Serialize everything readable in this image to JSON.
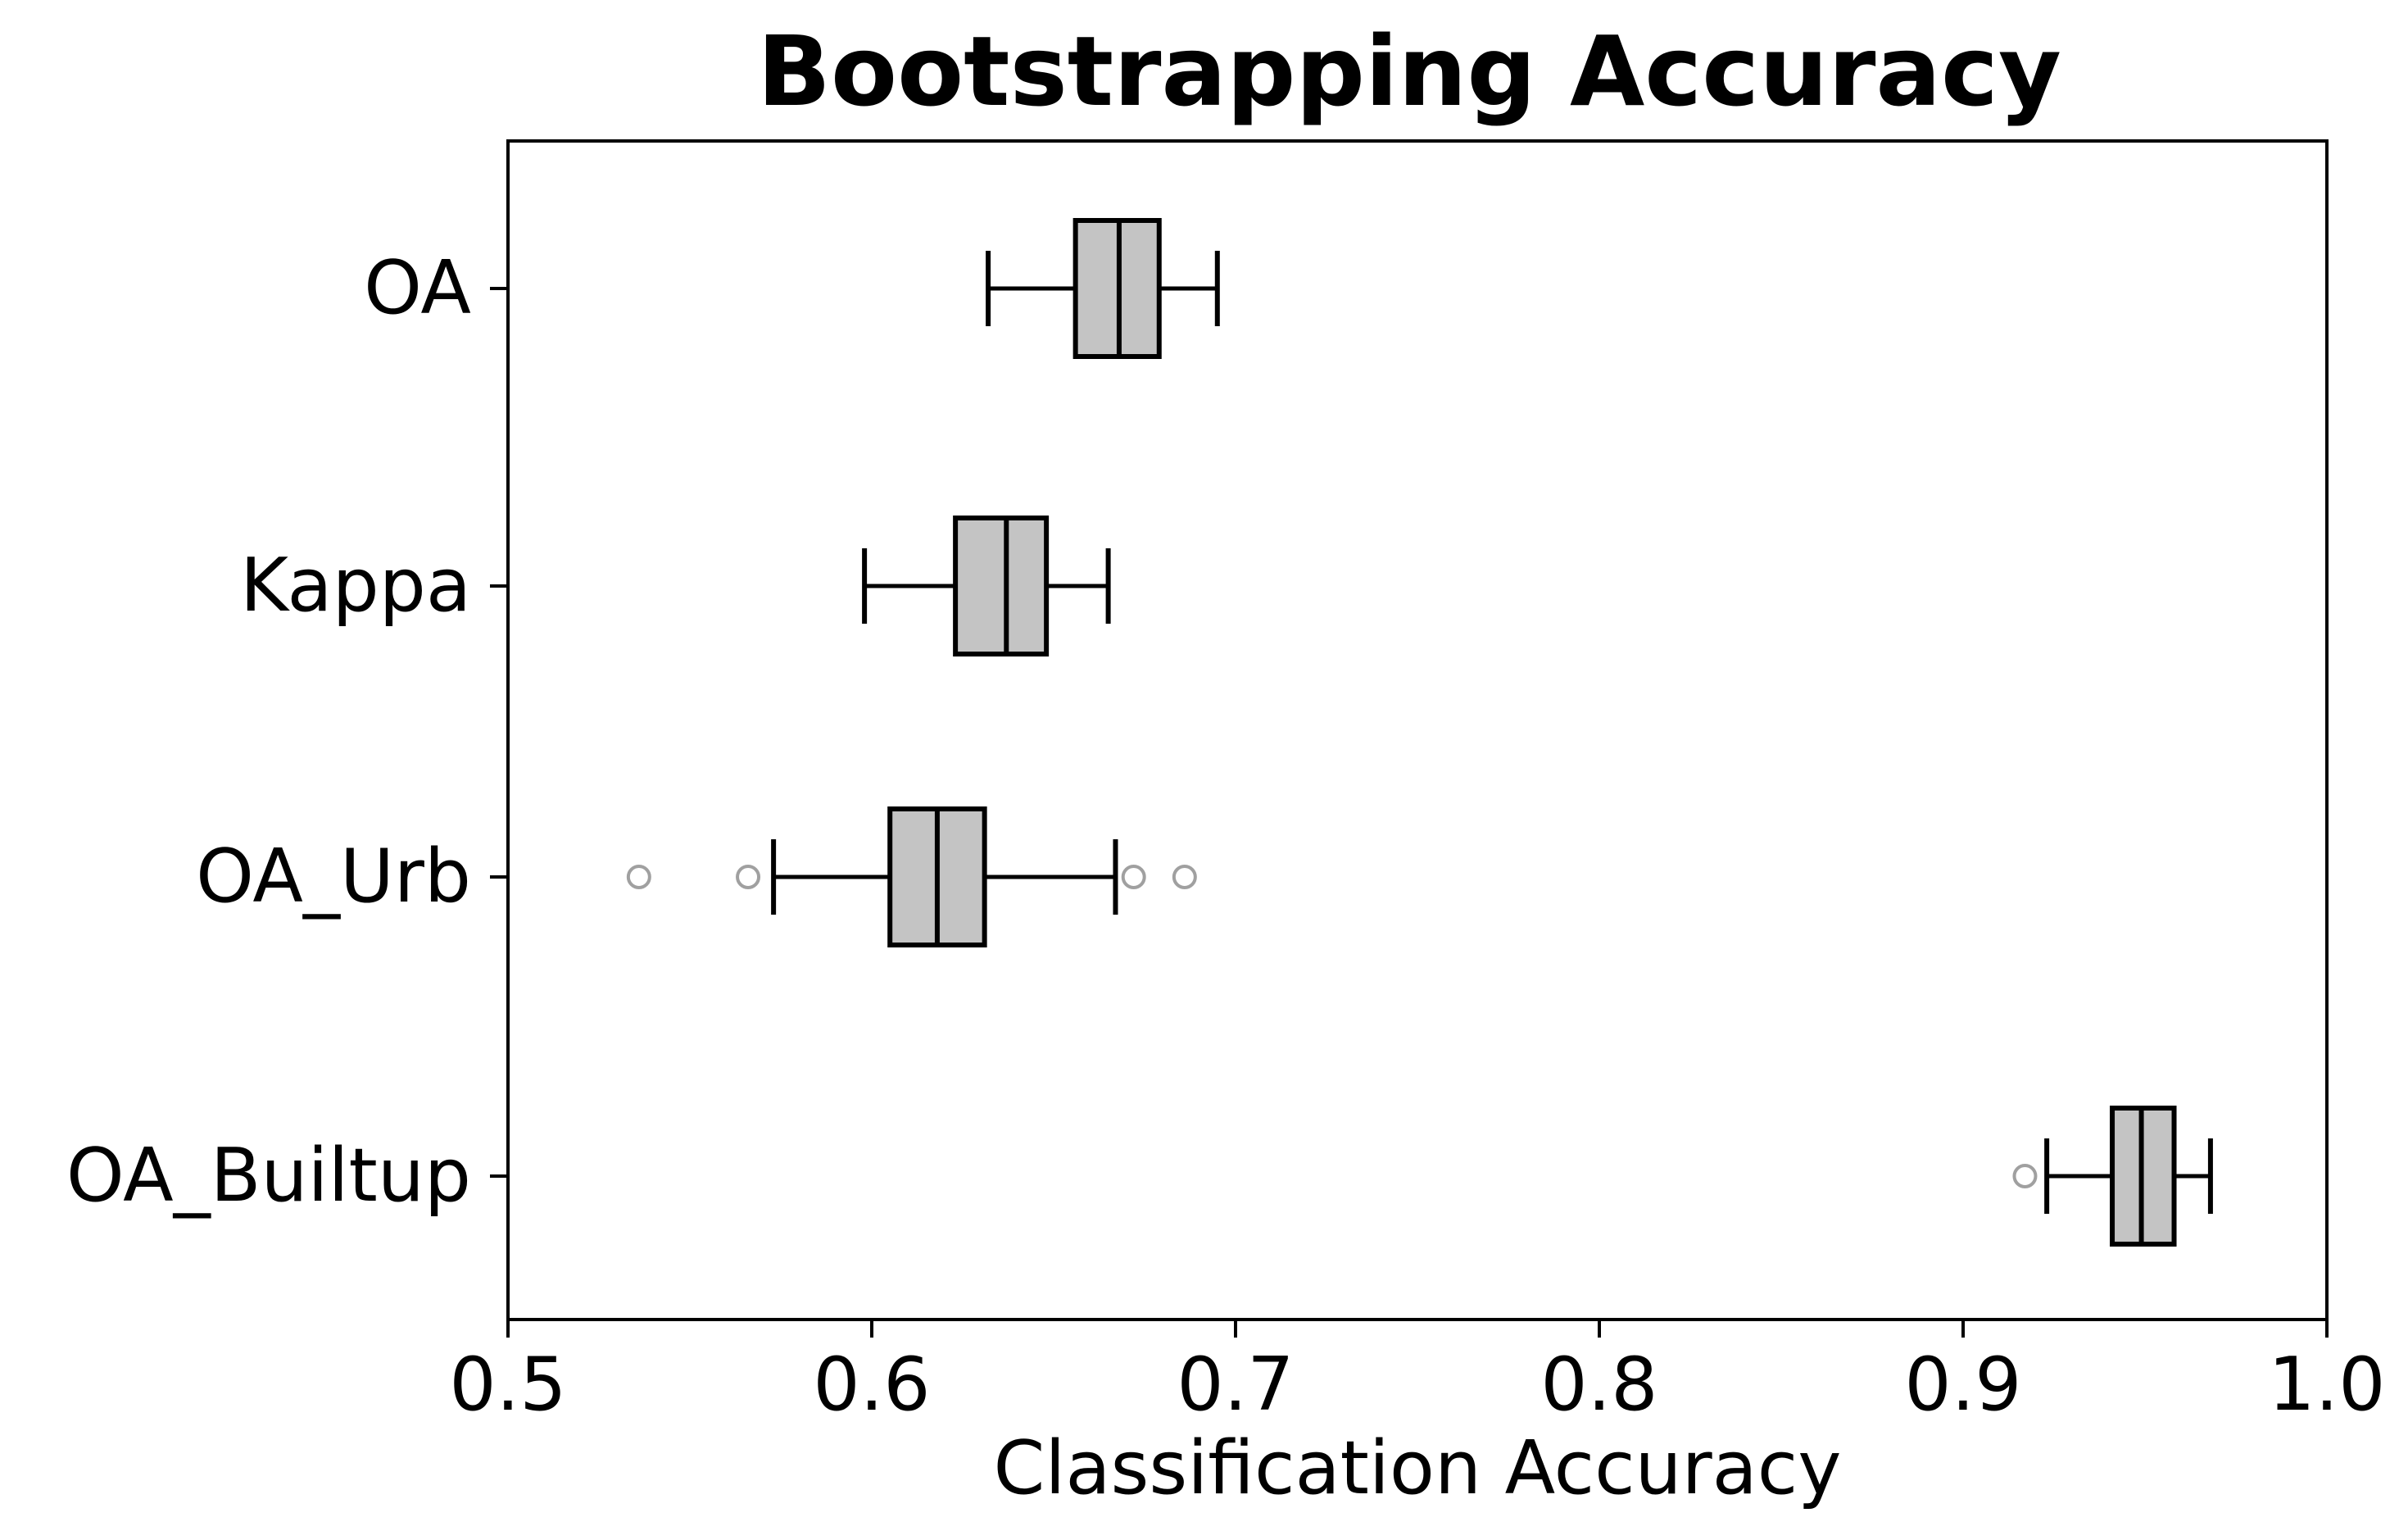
{
  "chart_data": {
    "type": "boxplot",
    "orientation": "horizontal",
    "title": "Bootstrapping Accuracy",
    "xlabel": "Classification Accuracy",
    "ylabel": "",
    "xlim": [
      0.5,
      1.0
    ],
    "xticks": [
      0.5,
      0.6,
      0.7,
      0.8,
      0.9,
      1.0
    ],
    "xtick_labels": [
      "0.5",
      "0.6",
      "0.7",
      "0.8",
      "0.9",
      "1.0"
    ],
    "grid": false,
    "box_fill": "#c4c4c4",
    "outlier_color": "#a0a0a0",
    "categories": [
      "OA",
      "Kappa",
      "OA_Urb",
      "OA_Builtup"
    ],
    "boxes": [
      {
        "label": "OA",
        "whisker_low": 0.632,
        "q1": 0.656,
        "median": 0.668,
        "q3": 0.679,
        "whisker_high": 0.695,
        "outliers": []
      },
      {
        "label": "Kappa",
        "whisker_low": 0.598,
        "q1": 0.623,
        "median": 0.637,
        "q3": 0.648,
        "whisker_high": 0.665,
        "outliers": []
      },
      {
        "label": "OA_Urb",
        "whisker_low": 0.573,
        "q1": 0.605,
        "median": 0.618,
        "q3": 0.631,
        "whisker_high": 0.667,
        "outliers": [
          0.536,
          0.566,
          0.672,
          0.686
        ]
      },
      {
        "label": "OA_Builtup",
        "whisker_low": 0.923,
        "q1": 0.941,
        "median": 0.949,
        "q3": 0.958,
        "whisker_high": 0.968,
        "outliers": [
          0.917
        ]
      }
    ]
  }
}
